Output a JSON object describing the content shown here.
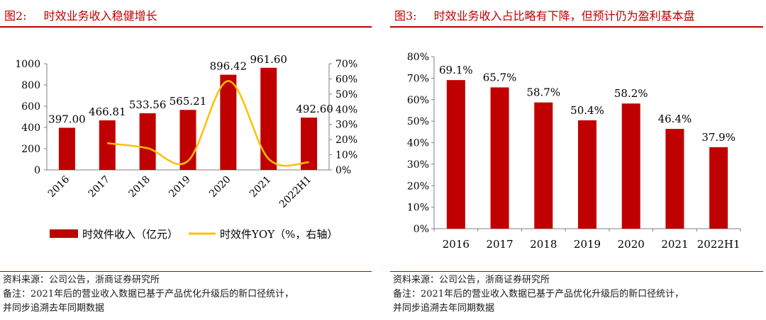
{
  "figures": [
    {
      "number": "图2:",
      "title": "时效业务收入稳健增长",
      "source": "资料来源：公司公告，浙商证券研究所",
      "note_line1": "备注：2021年后的营业收入数据已基于产品优化升级后的新口径统计，",
      "note_line2": "并同步追溯去年同期数据"
    },
    {
      "number": "图3:",
      "title": "时效业务收入占比略有下降，但预计仍为盈利基本盘",
      "source": "资料来源：公司公告，浙商证券研究所",
      "note_line1": "备注：2021年后的营业收入数据已基于产品优化升级后的新口径统计，",
      "note_line2": "并同步追溯去年同期数据"
    }
  ],
  "chart_data": [
    {
      "type": "bar+line",
      "categories": [
        "2016",
        "2017",
        "2018",
        "2019",
        "2020",
        "2021",
        "2022H1"
      ],
      "series": [
        {
          "name": "时效件收入（亿元）",
          "type": "bar",
          "axis": "left",
          "values": [
            397.0,
            466.81,
            533.56,
            565.21,
            896.42,
            961.6,
            492.6
          ],
          "labels": [
            "397.00",
            "466.81",
            "533.56",
            "565.21",
            "896.42",
            "961.60",
            "492.60"
          ],
          "color": "#c00000"
        },
        {
          "name": "时效件YOY（%，右轴）",
          "type": "line",
          "axis": "right",
          "values": [
            null,
            17.6,
            14.3,
            5.9,
            58.6,
            7.3,
            5.0
          ],
          "color": "#ffc000"
        }
      ],
      "y_left": {
        "min": 0,
        "max": 1000,
        "ticks": [
          "0",
          "200",
          "400",
          "600",
          "800",
          "1000"
        ]
      },
      "y_right": {
        "min": 0,
        "max": 70,
        "ticks": [
          "0%",
          "10%",
          "20%",
          "30%",
          "40%",
          "50%",
          "60%",
          "70%"
        ]
      },
      "legend_position": "bottom"
    },
    {
      "type": "bar",
      "categories": [
        "2016",
        "2017",
        "2018",
        "2019",
        "2020",
        "2021",
        "2022H1"
      ],
      "values": [
        69.1,
        65.7,
        58.7,
        50.4,
        58.2,
        46.4,
        37.9
      ],
      "labels": [
        "69.1%",
        "65.7%",
        "58.7%",
        "50.4%",
        "58.2%",
        "46.4%",
        "37.9%"
      ],
      "y_axis": {
        "min": 0,
        "max": 80,
        "ticks": [
          "0%",
          "10%",
          "20%",
          "30%",
          "40%",
          "50%",
          "60%",
          "70%",
          "80%"
        ]
      },
      "color": "#c00000"
    }
  ]
}
